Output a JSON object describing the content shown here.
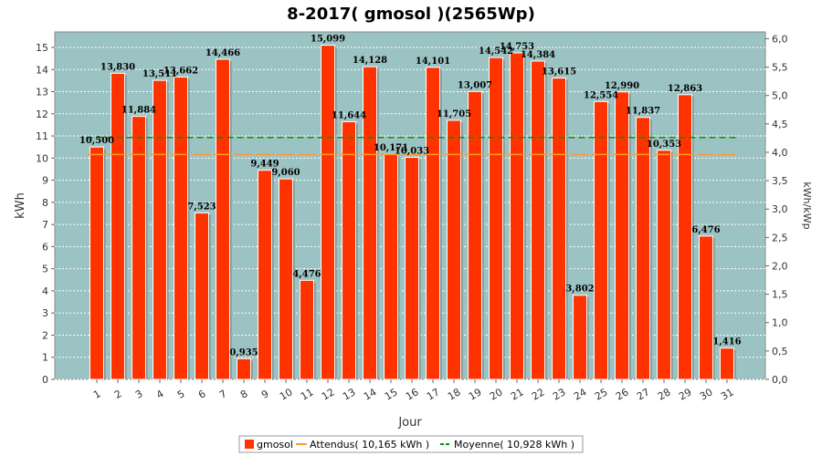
{
  "chart_data": {
    "type": "bar",
    "title": "8-2017( gmosol )(2565Wp)",
    "xlabel": "Jour",
    "ylabel": "kWh",
    "ylabel_right": "kWh/kWp",
    "ylim": [
      0,
      15.7
    ],
    "ylim_right": [
      0,
      6.12
    ],
    "yticks": [
      0,
      1,
      2,
      3,
      4,
      5,
      6,
      7,
      8,
      9,
      10,
      11,
      12,
      13,
      14,
      15
    ],
    "yticks_right": [
      "0,0",
      "0,5",
      "1,0",
      "1,5",
      "2,0",
      "2,5",
      "3,0",
      "3,5",
      "4,0",
      "4,5",
      "5,0",
      "5,5",
      "6,0"
    ],
    "categories": [
      "1",
      "2",
      "3",
      "4",
      "5",
      "6",
      "7",
      "8",
      "9",
      "10",
      "11",
      "12",
      "13",
      "14",
      "15",
      "16",
      "17",
      "18",
      "19",
      "20",
      "21",
      "22",
      "23",
      "24",
      "25",
      "26",
      "27",
      "28",
      "29",
      "30",
      "31"
    ],
    "series": [
      {
        "name": "gmosol",
        "values": [
          10.5,
          13.83,
          11.884,
          13.511,
          13.662,
          7.523,
          14.466,
          0.935,
          9.449,
          9.06,
          4.476,
          15.099,
          11.644,
          14.128,
          10.171,
          10.033,
          14.101,
          11.705,
          13.007,
          14.542,
          14.753,
          14.384,
          13.615,
          3.802,
          12.554,
          12.99,
          11.837,
          10.353,
          12.863,
          6.476,
          1.416
        ],
        "labels": [
          "10,500",
          "13,830",
          "11,884",
          "13,511",
          "13,662",
          "7,523",
          "14,466",
          "0,935",
          "9,449",
          "9,060",
          "4,476",
          "15,099",
          "11,644",
          "14,128",
          "10,171",
          "10,033",
          "14,101",
          "11,705",
          "13,007",
          "14,542",
          "14,753",
          "14,384",
          "13,615",
          "3,802",
          "12,554",
          "12,990",
          "11,837",
          "10,353",
          "12,863",
          "6,476",
          "1,416"
        ],
        "color": "#ff3300"
      }
    ],
    "expected": {
      "name": "Attendus( 10,165 kWh )",
      "value": 10.165,
      "color": "#ff9933"
    },
    "average": {
      "name": "Moyenne( 10,928 kWh )",
      "value": 10.928,
      "color": "#009900"
    },
    "grid": true,
    "legend_position": "bottom",
    "colors": {
      "plot_bg": "#9cc3c3",
      "grid": "#ffffff",
      "bar": "#ff3300",
      "bar_edge": "#cc2200"
    }
  }
}
